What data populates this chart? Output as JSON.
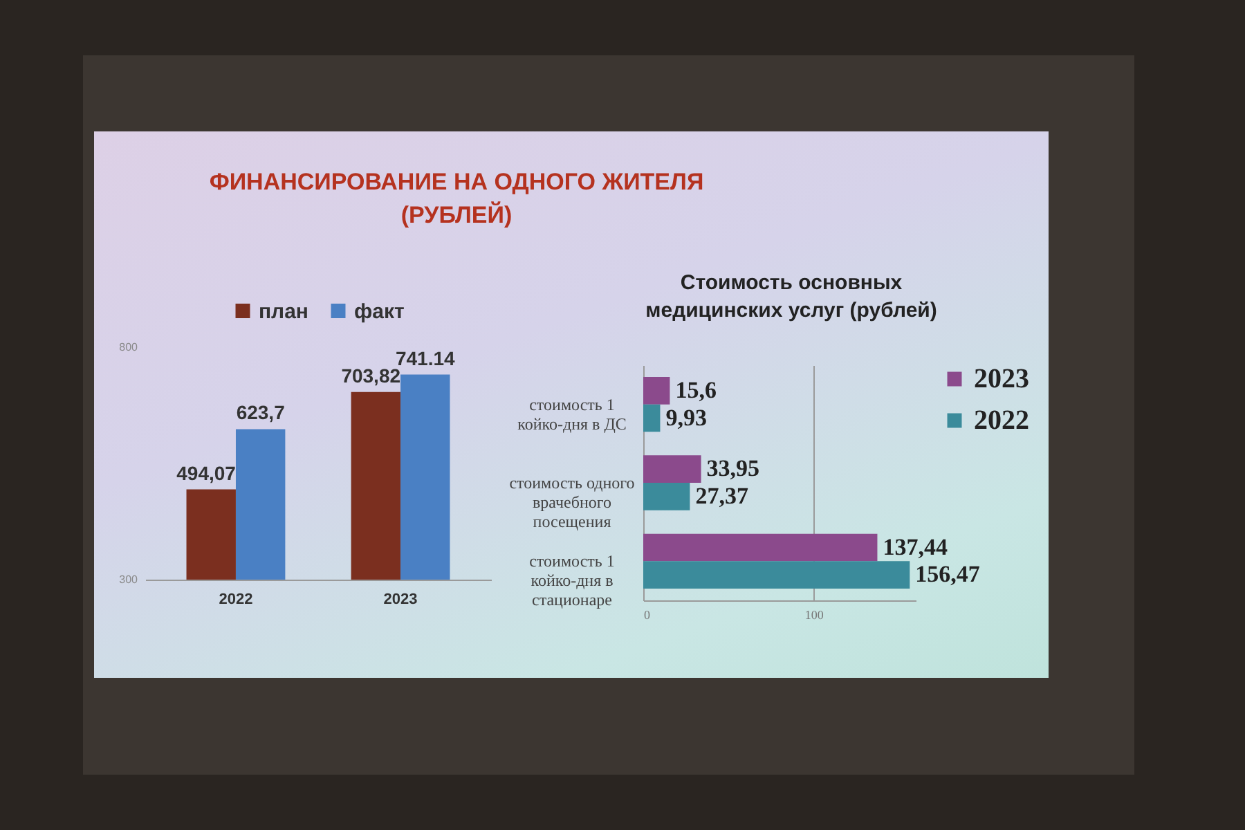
{
  "chart_data": [
    {
      "type": "bar",
      "title": "ФИНАНСИРОВАНИЕ НА ОДНОГО ЖИТЕЛЯ (РУБЛЕЙ)",
      "categories": [
        "2022",
        "2023"
      ],
      "series": [
        {
          "name": "план",
          "color": "#7b2f1f",
          "values": [
            494.07,
            703.82
          ],
          "value_labels": [
            "494,07",
            "703,82"
          ]
        },
        {
          "name": "факт",
          "color": "#4a80c4",
          "values": [
            623.7,
            741.14
          ],
          "value_labels": [
            "623,7",
            "741.14"
          ]
        }
      ],
      "ylim": [
        300,
        800
      ],
      "yticks": [
        300,
        800
      ],
      "grid": false,
      "legend": "top"
    },
    {
      "type": "bar",
      "orientation": "horizontal",
      "title": "Стоимость основных медицинских услуг (рублей)",
      "categories": [
        "стоимость 1 койко-дня в ДС",
        "стоимость одного врачебного посещения",
        "стоимость 1 койко-дня в стационаре"
      ],
      "series": [
        {
          "name": "2023",
          "color": "#8b4a8c",
          "values": [
            15.6,
            33.95,
            137.44
          ],
          "value_labels": [
            "15,6",
            "33,95",
            "137,44"
          ]
        },
        {
          "name": "2022",
          "color": "#3b8b9b",
          "values": [
            9.93,
            27.37,
            156.47
          ],
          "value_labels": [
            "9,93",
            "27,37",
            "156,47"
          ]
        }
      ],
      "xlim": [
        0,
        160
      ],
      "xticks": [
        0,
        100
      ],
      "grid": "x",
      "legend": "right"
    }
  ]
}
